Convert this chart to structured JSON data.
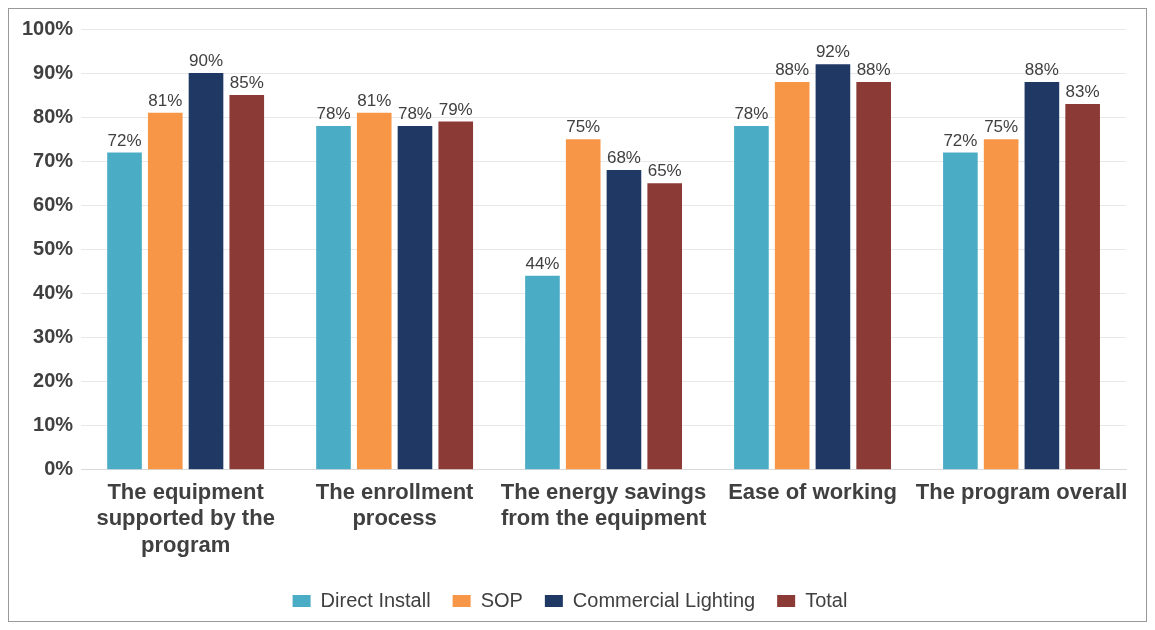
{
  "chart_data": {
    "type": "bar",
    "categories": [
      "The equipment supported by the program",
      "The enrollment process",
      "The energy savings from the equipment",
      "Ease of working",
      "The program overall"
    ],
    "series": [
      {
        "name": "Direct Install",
        "color": "#4bacc6",
        "values": [
          72,
          78,
          44,
          78,
          72
        ],
        "value_labels": [
          "72%",
          "78%",
          "44%",
          "78%",
          "72%"
        ]
      },
      {
        "name": "SOP",
        "color": "#f79646",
        "values": [
          81,
          81,
          75,
          88,
          75
        ],
        "value_labels": [
          "81%",
          "81%",
          "75%",
          "88%",
          "75%"
        ]
      },
      {
        "name": "Commercial Lighting",
        "color": "#1f3864",
        "values": [
          90,
          78,
          68,
          92,
          88
        ],
        "value_labels": [
          "90%",
          "78%",
          "68%",
          "92%",
          "88%"
        ]
      },
      {
        "name": "Total",
        "color": "#8b3a36",
        "values": [
          85,
          79,
          65,
          88,
          83
        ],
        "value_labels": [
          "85%",
          "79%",
          "65%",
          "88%",
          "83%"
        ]
      }
    ],
    "ylim": [
      0,
      100
    ],
    "yticks": [
      {
        "value": 0,
        "label": "0%"
      },
      {
        "value": 10,
        "label": "10%"
      },
      {
        "value": 20,
        "label": "20%"
      },
      {
        "value": 30,
        "label": "30%"
      },
      {
        "value": 40,
        "label": "40%"
      },
      {
        "value": 50,
        "label": "50%"
      },
      {
        "value": 60,
        "label": "60%"
      },
      {
        "value": 70,
        "label": "70%"
      },
      {
        "value": 80,
        "label": "80%"
      },
      {
        "value": 90,
        "label": "90%"
      },
      {
        "value": 100,
        "label": "100%"
      }
    ],
    "grid": "y",
    "legend": "bottom"
  }
}
